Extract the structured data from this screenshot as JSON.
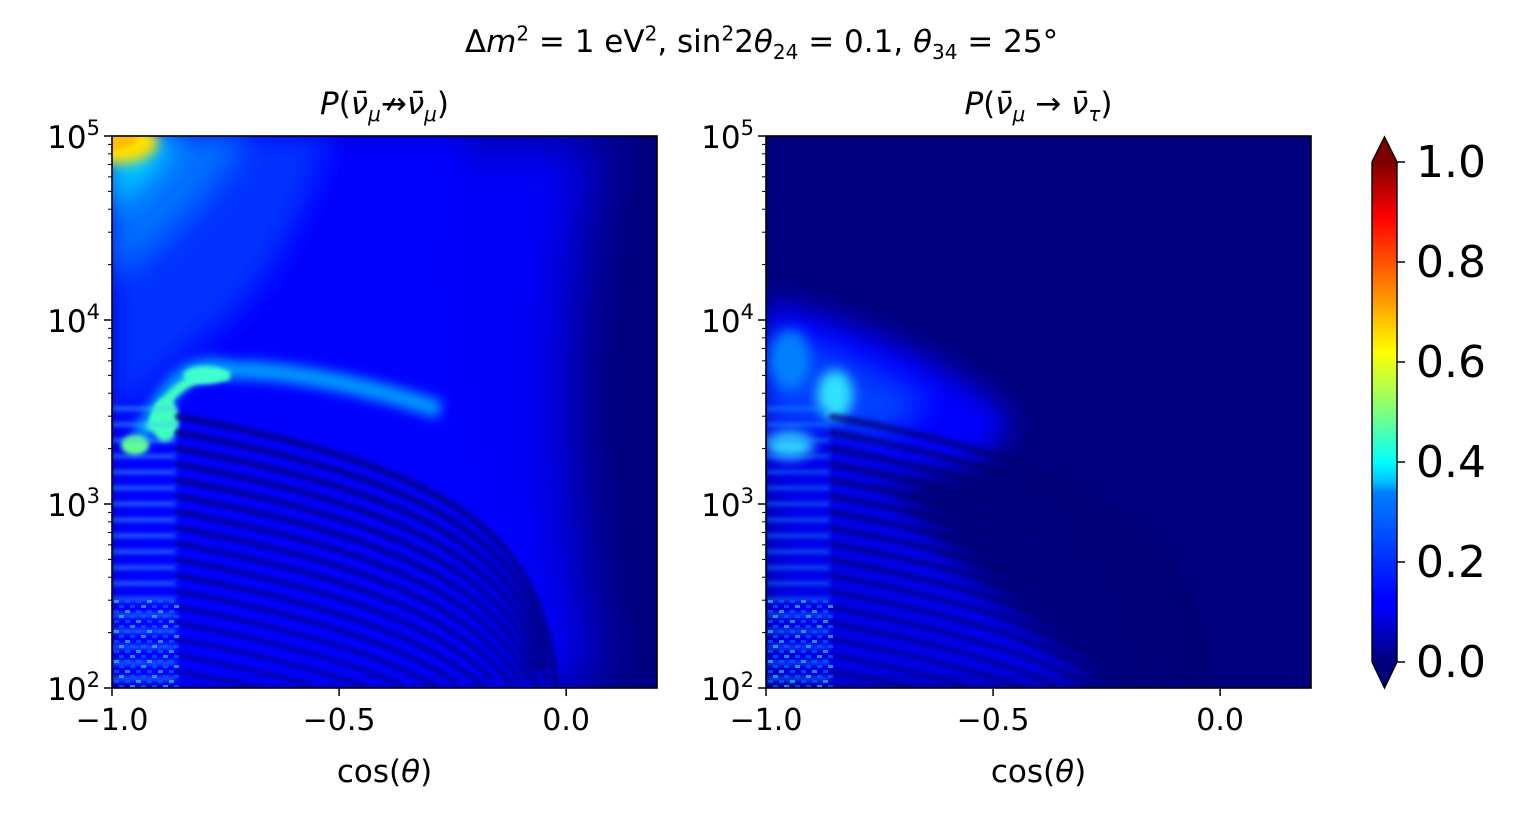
{
  "figure": {
    "suptitle": "Δm² = 1 eV², sin²2θ₂₄ = 0.1, θ₃₄ = 25°"
  },
  "chart_data": [
    {
      "type": "heatmap",
      "title": "P(ν̄μ↛ν̄μ)",
      "xlabel": "cos(θ)",
      "ylabel": "",
      "xlim": [
        -1.0,
        0.2
      ],
      "ylim": [
        100,
        100000
      ],
      "yscale": "log",
      "xticks": [
        -1.0,
        -0.5,
        0.0
      ],
      "xtick_labels": [
        "−1.0",
        "−0.5",
        "0.0"
      ],
      "yticks": [
        100,
        1000,
        10000,
        100000
      ],
      "ytick_labels": [
        "10²",
        "10³",
        "10⁴",
        "10⁵"
      ],
      "colormap": "jet",
      "features": [
        {
          "cos": -0.98,
          "E": 90000,
          "value": 0.65
        },
        {
          "cos": -0.9,
          "E": 20000,
          "value": 0.25
        },
        {
          "cos": -0.8,
          "E": 5000,
          "value": 0.32
        },
        {
          "cos": -0.85,
          "E": 3500,
          "value": 0.4
        },
        {
          "cos": -0.6,
          "E": 10000,
          "value": 0.15
        },
        {
          "cos": 0.1,
          "E": 10000,
          "value": 0.02
        }
      ]
    },
    {
      "type": "heatmap",
      "title": "P(ν̄μ→ν̄τ)",
      "xlabel": "cos(θ)",
      "ylabel": "",
      "xlim": [
        -1.0,
        0.2
      ],
      "ylim": [
        100,
        100000
      ],
      "yscale": "log",
      "xticks": [
        -1.0,
        -0.5,
        0.0
      ],
      "xtick_labels": [
        "−1.0",
        "−0.5",
        "0.0"
      ],
      "yticks": [
        100,
        1000,
        10000,
        100000
      ],
      "ytick_labels": [
        "10²",
        "10³",
        "10⁴",
        "10⁵"
      ],
      "colormap": "jet",
      "features": [
        {
          "cos": -0.85,
          "E": 3800,
          "value": 0.35
        },
        {
          "cos": -0.95,
          "E": 2000,
          "value": 0.3
        },
        {
          "cos": -0.7,
          "E": 5000,
          "value": 0.15
        },
        {
          "cos": 0.1,
          "E": 30000,
          "value": 0.02
        }
      ]
    }
  ],
  "colorbar": {
    "ticks": [
      0.0,
      0.2,
      0.4,
      0.6,
      0.8,
      1.0
    ],
    "tick_labels": [
      "0.0",
      "0.2",
      "0.4",
      "0.6",
      "0.8",
      "1.0"
    ],
    "range": [
      0.0,
      1.0
    ],
    "extend": "both",
    "colors": {
      "under": "#00007f",
      "over": "#7f0000"
    }
  }
}
